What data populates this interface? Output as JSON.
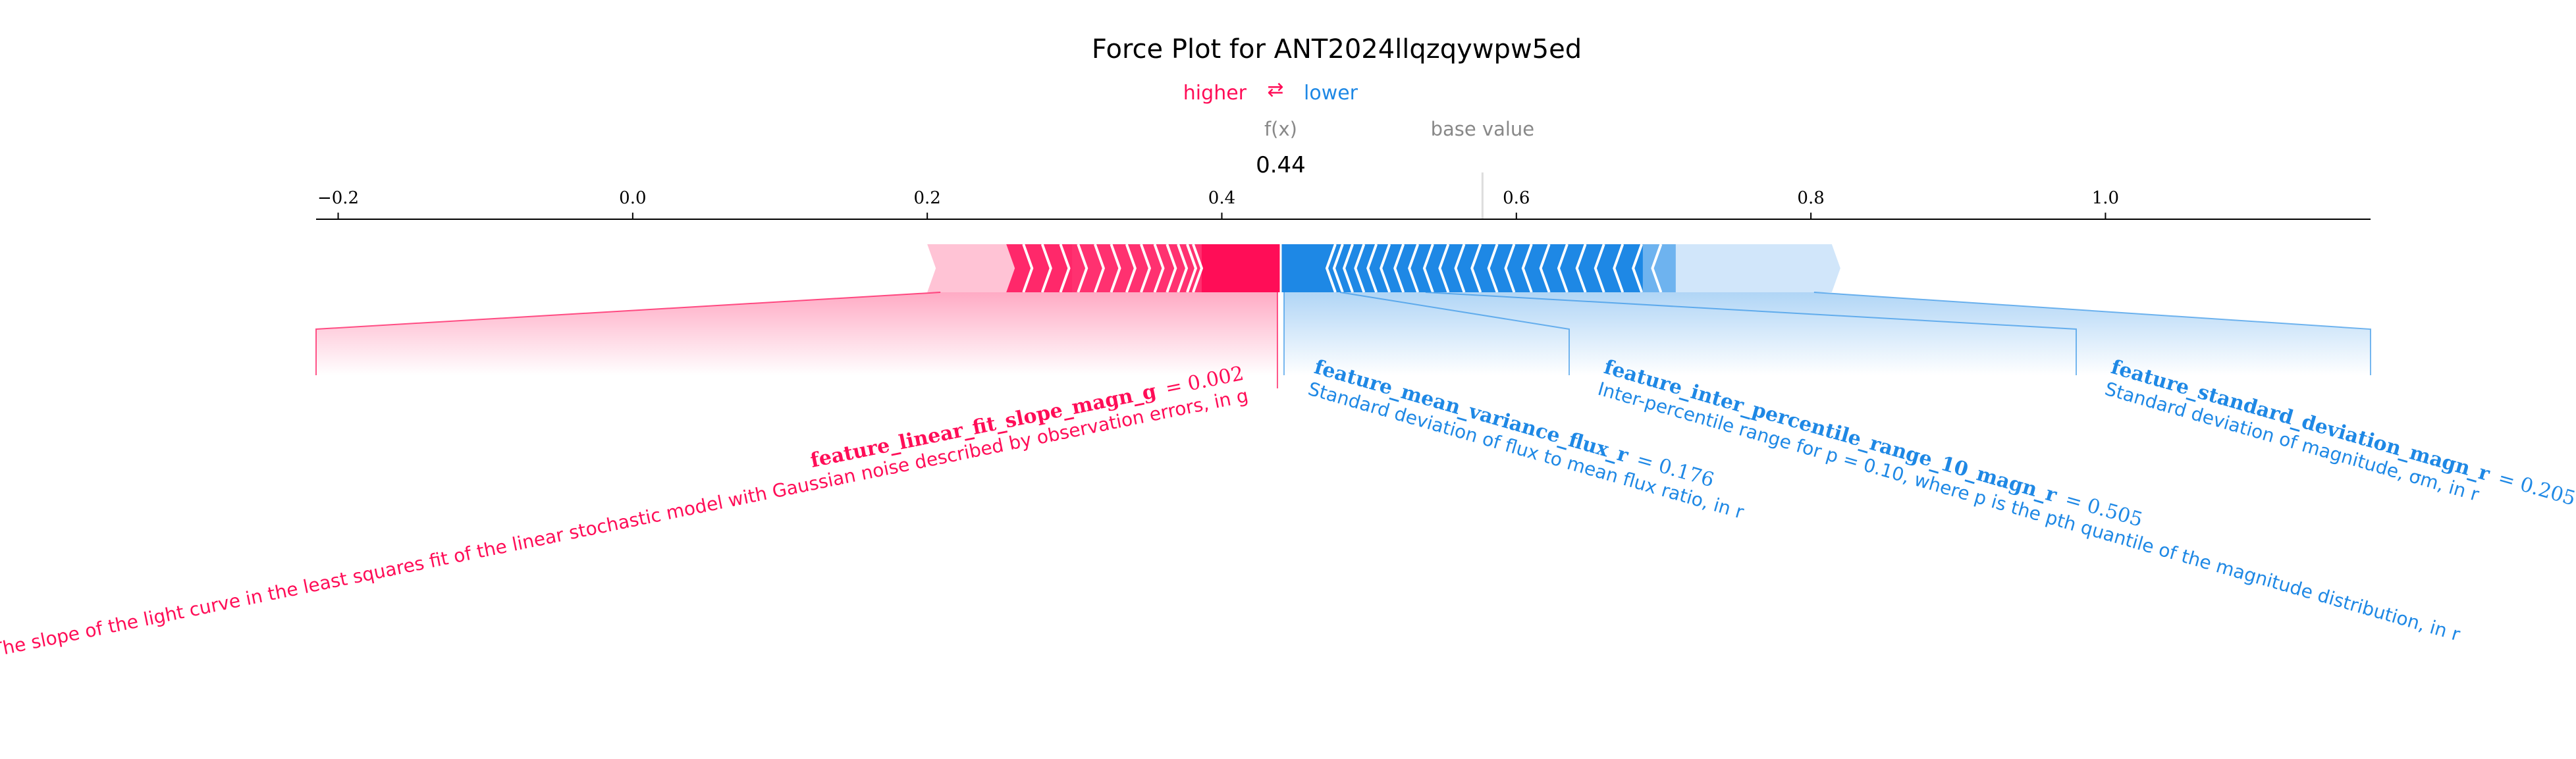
{
  "chart_data": {
    "type": "force",
    "title": "Force Plot for ANT2024llqzqywpw5ed",
    "legend": {
      "higher": "higher",
      "arrow": "⇄",
      "lower": "lower"
    },
    "fx_label": "f(x)",
    "base_value_label": "base value",
    "output_value": 0.44,
    "output_value_text": "0.44",
    "base_value": 0.577,
    "x_ticks": [
      -0.2,
      0.0,
      0.2,
      0.4,
      0.6,
      0.8,
      1.0
    ],
    "x_tick_labels": [
      "−0.2",
      "0.0",
      "0.2",
      "0.4",
      "0.6",
      "0.8",
      "1.0"
    ],
    "xlim": [
      -0.215,
      1.18
    ],
    "positive_span": [
      0.2,
      0.44
    ],
    "negative_span": [
      0.44,
      0.82
    ],
    "colors": {
      "positive": "#ff0d57",
      "negative": "#1e88e5",
      "positive_light": "#ffc3d5",
      "negative_light": "#d1e6fa",
      "axis": "#000000"
    },
    "features": [
      {
        "side": "positive",
        "name": "feature_linear_fit_slope_magn_g",
        "value": "= 0.002",
        "description": "The slope of the light curve in the least squares fit of the linear stochastic model with Gaussian noise described by observation errors, in g"
      },
      {
        "side": "negative",
        "name": "feature_mean_variance_flux_r",
        "value": "= 0.176",
        "description": "Standard deviation of flux to mean flux ratio, in r"
      },
      {
        "side": "negative",
        "name": "feature_inter_percentile_range_10_magn_r",
        "value": "= 0.505",
        "description": "Inter-percentile range for p = 0.10, where p is the pth quantile of the magnitude distribution, in r"
      },
      {
        "side": "negative",
        "name": "feature_standard_deviation_magn_r",
        "value": "= 0.205",
        "description": "Standard deviation of magnitude, σm, in r"
      }
    ]
  }
}
